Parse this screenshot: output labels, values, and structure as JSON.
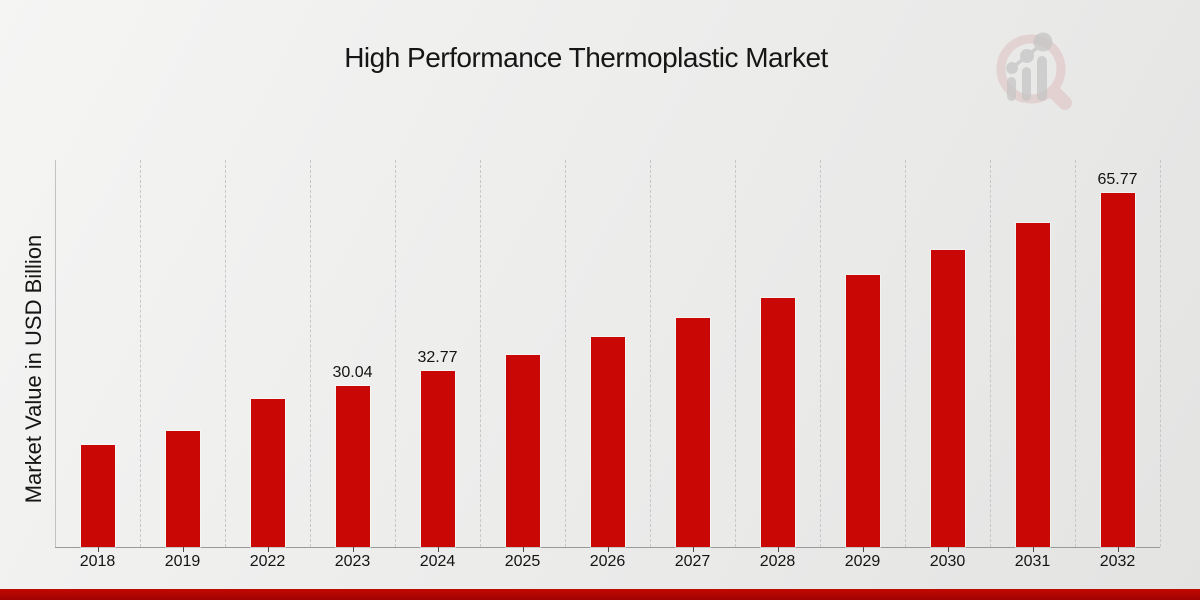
{
  "page": {
    "title": "High Performance Thermoplastic Market",
    "y_axis_label": "Market Value in USD Billion"
  },
  "logo": {
    "name": "market-research-future-watermark"
  },
  "colors": {
    "bar": "#c90705",
    "bottom_band": "#b30602",
    "background": "#ececec",
    "gridline": "#c7c7c7",
    "axis_line": "#9a9a9a",
    "text": "#141414",
    "watermark_ring": "#ddbfbf",
    "watermark_bars": "#c6c6c6"
  },
  "chart_data": {
    "type": "bar",
    "title": "High Performance Thermoplastic Market",
    "xlabel": "",
    "ylabel": "Market Value in USD Billion",
    "unit": "USD Billion",
    "categories": [
      "2018",
      "2019",
      "2022",
      "2023",
      "2024",
      "2025",
      "2026",
      "2027",
      "2028",
      "2029",
      "2030",
      "2031",
      "2032"
    ],
    "values": [
      19.0,
      21.5,
      27.6,
      30.04,
      32.77,
      35.75,
      39.0,
      42.55,
      46.4,
      50.6,
      55.2,
      60.3,
      65.77
    ],
    "data_labels": {
      "2023": "30.04",
      "2024": "32.77",
      "2032": "65.77"
    },
    "ylim": [
      0,
      72
    ],
    "grid": "vertical-dashed",
    "legend": "none",
    "bar_color": "#c90705"
  }
}
